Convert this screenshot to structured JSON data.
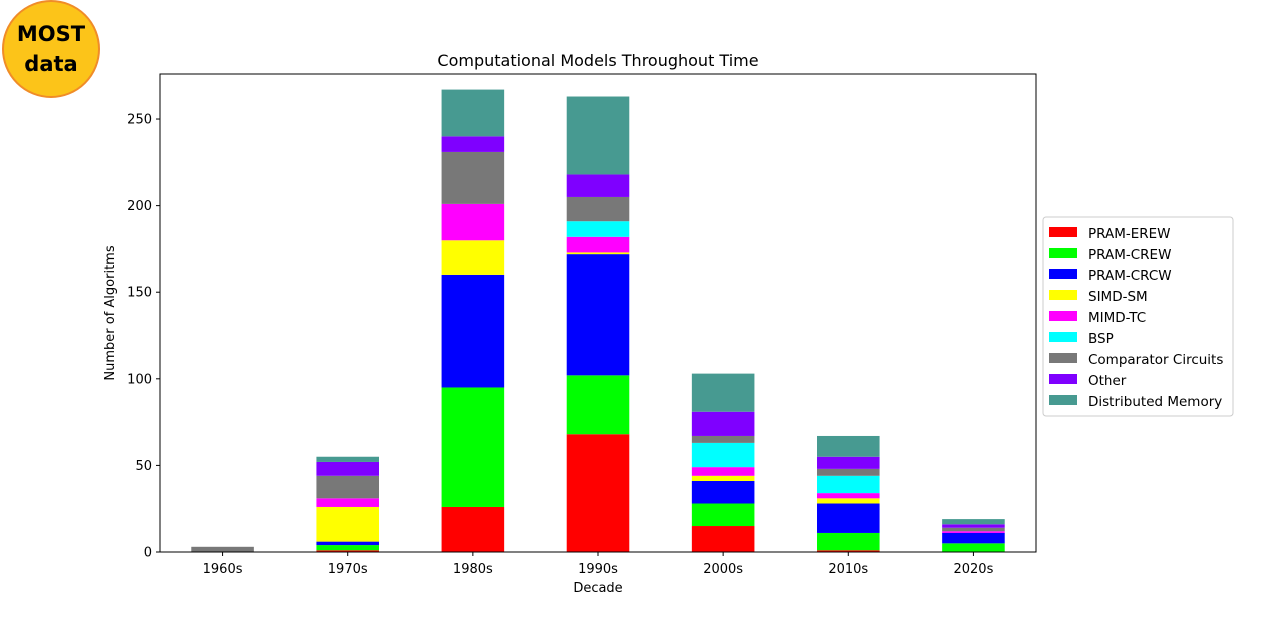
{
  "badge": {
    "line1": "MOST",
    "line2": "data"
  },
  "chart_data": {
    "type": "bar",
    "stacked": true,
    "title": "Computational Models Throughout Time",
    "xlabel": "Decade",
    "ylabel": "Number of Algoritms",
    "categories": [
      "1960s",
      "1970s",
      "1980s",
      "1990s",
      "2000s",
      "2010s",
      "2020s"
    ],
    "ylim": [
      0,
      276
    ],
    "yticks": [
      0,
      50,
      100,
      150,
      200,
      250
    ],
    "legend_position": "right",
    "series": [
      {
        "name": "PRAM-EREW",
        "color": "#ff0000",
        "values": [
          0,
          1,
          26,
          68,
          15,
          1,
          0
        ]
      },
      {
        "name": "PRAM-CREW",
        "color": "#00ff00",
        "values": [
          0,
          3,
          69,
          34,
          13,
          10,
          5
        ]
      },
      {
        "name": "PRAM-CRCW",
        "color": "#0000ff",
        "values": [
          0,
          2,
          65,
          70,
          13,
          17,
          6
        ]
      },
      {
        "name": "SIMD-SM",
        "color": "#ffff00",
        "values": [
          0,
          20,
          20,
          1,
          3,
          3,
          0
        ]
      },
      {
        "name": "MIMD-TC",
        "color": "#ff00ff",
        "values": [
          0,
          5,
          21,
          9,
          5,
          3,
          1
        ]
      },
      {
        "name": "BSP",
        "color": "#00ffff",
        "values": [
          0,
          0,
          0,
          9,
          14,
          10,
          0
        ]
      },
      {
        "name": "Comparator Circuits",
        "color": "#787878",
        "values": [
          3,
          13,
          30,
          14,
          4,
          4,
          2
        ]
      },
      {
        "name": "Other",
        "color": "#7f00ff",
        "values": [
          0,
          8,
          9,
          13,
          14,
          7,
          2
        ]
      },
      {
        "name": "Distributed Memory",
        "color": "#479a91",
        "values": [
          0,
          3,
          27,
          45,
          22,
          12,
          3
        ]
      }
    ]
  }
}
